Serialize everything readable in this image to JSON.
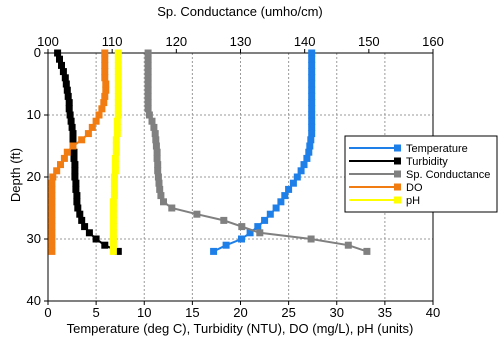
{
  "chart_data": {
    "type": "line",
    "orientation": "depth-profile",
    "grid": true,
    "legend_placement": "right",
    "bottom_axis": {
      "label": "Temperature (deg C), Turbidity (NTU), DO (mg/L), pH (units)",
      "range": [
        0,
        40
      ],
      "ticks": [
        "0",
        "5",
        "10",
        "15",
        "20",
        "25",
        "30",
        "35",
        "40"
      ]
    },
    "top_axis": {
      "label": "Sp. Conductance (umho/cm)",
      "range": [
        100,
        160
      ],
      "ticks": [
        "100",
        "110",
        "120",
        "130",
        "140",
        "150",
        "160"
      ]
    },
    "left_axis": {
      "label": "Depth (ft)",
      "range": [
        0,
        40
      ],
      "inverted": true,
      "ticks": [
        "0",
        "10",
        "20",
        "30",
        "40"
      ]
    },
    "series": [
      {
        "name": "Temperature",
        "color": "#1e7fe8",
        "axis": "bottom",
        "marker": "square",
        "points": [
          [
            27.4,
            0
          ],
          [
            27.4,
            1
          ],
          [
            27.4,
            2
          ],
          [
            27.4,
            3
          ],
          [
            27.4,
            4
          ],
          [
            27.4,
            5
          ],
          [
            27.4,
            6
          ],
          [
            27.4,
            7
          ],
          [
            27.4,
            8
          ],
          [
            27.4,
            9
          ],
          [
            27.4,
            10
          ],
          [
            27.4,
            11
          ],
          [
            27.4,
            12
          ],
          [
            27.4,
            13
          ],
          [
            27.3,
            14
          ],
          [
            27.2,
            15
          ],
          [
            27.1,
            16
          ],
          [
            26.9,
            17
          ],
          [
            26.6,
            18
          ],
          [
            26.3,
            19
          ],
          [
            25.9,
            20
          ],
          [
            25.5,
            21
          ],
          [
            25.0,
            22
          ],
          [
            24.6,
            23
          ],
          [
            24.2,
            24
          ],
          [
            23.7,
            25
          ],
          [
            23.1,
            26
          ],
          [
            22.5,
            27
          ],
          [
            21.8,
            28
          ],
          [
            21.0,
            29
          ],
          [
            20.1,
            30
          ],
          [
            18.5,
            31
          ],
          [
            17.2,
            32
          ]
        ]
      },
      {
        "name": "Turbidity",
        "color": "#000000",
        "axis": "bottom",
        "marker": "square",
        "points": [
          [
            1.0,
            0
          ],
          [
            1.2,
            1
          ],
          [
            1.4,
            2
          ],
          [
            1.6,
            3
          ],
          [
            1.8,
            4
          ],
          [
            1.9,
            5
          ],
          [
            2.0,
            6
          ],
          [
            2.1,
            7
          ],
          [
            2.2,
            8
          ],
          [
            2.2,
            9
          ],
          [
            2.3,
            10
          ],
          [
            2.4,
            11
          ],
          [
            2.5,
            12
          ],
          [
            2.6,
            13
          ],
          [
            2.6,
            14
          ],
          [
            2.6,
            15
          ],
          [
            2.7,
            16
          ],
          [
            2.7,
            17
          ],
          [
            2.8,
            18
          ],
          [
            2.8,
            19
          ],
          [
            2.8,
            20
          ],
          [
            2.9,
            21
          ],
          [
            2.9,
            22
          ],
          [
            3.0,
            23
          ],
          [
            3.0,
            24
          ],
          [
            3.1,
            25
          ],
          [
            3.3,
            26
          ],
          [
            3.5,
            27
          ],
          [
            3.8,
            28
          ],
          [
            4.3,
            29
          ],
          [
            5.0,
            30
          ],
          [
            5.9,
            31
          ],
          [
            7.3,
            32
          ]
        ]
      },
      {
        "name": "Sp. Conductance",
        "color": "#808080",
        "axis": "top",
        "marker": "square",
        "points": [
          [
            115.6,
            0
          ],
          [
            115.6,
            1
          ],
          [
            115.6,
            2
          ],
          [
            115.6,
            3
          ],
          [
            115.6,
            4
          ],
          [
            115.6,
            5
          ],
          [
            115.6,
            6
          ],
          [
            115.6,
            7
          ],
          [
            115.6,
            8
          ],
          [
            115.6,
            9
          ],
          [
            115.8,
            10
          ],
          [
            116.2,
            11
          ],
          [
            116.5,
            12
          ],
          [
            116.7,
            13
          ],
          [
            116.8,
            14
          ],
          [
            116.9,
            15
          ],
          [
            117.0,
            16
          ],
          [
            117.0,
            17
          ],
          [
            117.1,
            18
          ],
          [
            117.1,
            19
          ],
          [
            117.2,
            20
          ],
          [
            117.3,
            21
          ],
          [
            117.4,
            22
          ],
          [
            117.6,
            23
          ],
          [
            118.0,
            24
          ],
          [
            119.3,
            25
          ],
          [
            123.2,
            26
          ],
          [
            127.4,
            27
          ],
          [
            130.2,
            28
          ],
          [
            133.0,
            29
          ],
          [
            141.0,
            30
          ],
          [
            146.8,
            31
          ],
          [
            149.7,
            32
          ]
        ]
      },
      {
        "name": "DO",
        "color": "#f07c12",
        "axis": "bottom",
        "marker": "square",
        "points": [
          [
            5.9,
            0
          ],
          [
            5.9,
            1
          ],
          [
            5.9,
            2
          ],
          [
            5.9,
            3
          ],
          [
            5.9,
            4
          ],
          [
            6.0,
            5
          ],
          [
            6.0,
            6
          ],
          [
            5.9,
            7
          ],
          [
            5.8,
            8
          ],
          [
            5.6,
            9
          ],
          [
            5.3,
            10
          ],
          [
            5.0,
            11
          ],
          [
            4.6,
            12
          ],
          [
            4.2,
            13
          ],
          [
            3.5,
            14
          ],
          [
            2.6,
            15
          ],
          [
            2.0,
            16
          ],
          [
            1.7,
            17
          ],
          [
            1.3,
            18
          ],
          [
            0.9,
            19
          ],
          [
            0.5,
            20
          ],
          [
            0.4,
            21
          ],
          [
            0.4,
            22
          ],
          [
            0.4,
            23
          ],
          [
            0.4,
            24
          ],
          [
            0.4,
            25
          ],
          [
            0.4,
            26
          ],
          [
            0.4,
            27
          ],
          [
            0.4,
            28
          ],
          [
            0.4,
            29
          ],
          [
            0.4,
            30
          ],
          [
            0.4,
            31
          ],
          [
            0.4,
            32
          ]
        ]
      },
      {
        "name": "pH",
        "color": "#ffff00",
        "axis": "bottom",
        "marker": "square",
        "points": [
          [
            7.3,
            0
          ],
          [
            7.3,
            1
          ],
          [
            7.3,
            2
          ],
          [
            7.3,
            3
          ],
          [
            7.3,
            4
          ],
          [
            7.3,
            5
          ],
          [
            7.3,
            6
          ],
          [
            7.3,
            7
          ],
          [
            7.3,
            8
          ],
          [
            7.3,
            9
          ],
          [
            7.3,
            10
          ],
          [
            7.2,
            11
          ],
          [
            7.2,
            12
          ],
          [
            7.2,
            13
          ],
          [
            7.1,
            14
          ],
          [
            7.1,
            15
          ],
          [
            7.1,
            16
          ],
          [
            7.0,
            17
          ],
          [
            7.0,
            18
          ],
          [
            7.0,
            19
          ],
          [
            6.9,
            20
          ],
          [
            6.9,
            21
          ],
          [
            6.9,
            22
          ],
          [
            6.9,
            23
          ],
          [
            6.8,
            24
          ],
          [
            6.8,
            25
          ],
          [
            6.8,
            26
          ],
          [
            6.8,
            27
          ],
          [
            6.8,
            28
          ],
          [
            6.8,
            29
          ],
          [
            6.8,
            30
          ],
          [
            6.8,
            31
          ],
          [
            6.8,
            32
          ]
        ]
      }
    ]
  }
}
